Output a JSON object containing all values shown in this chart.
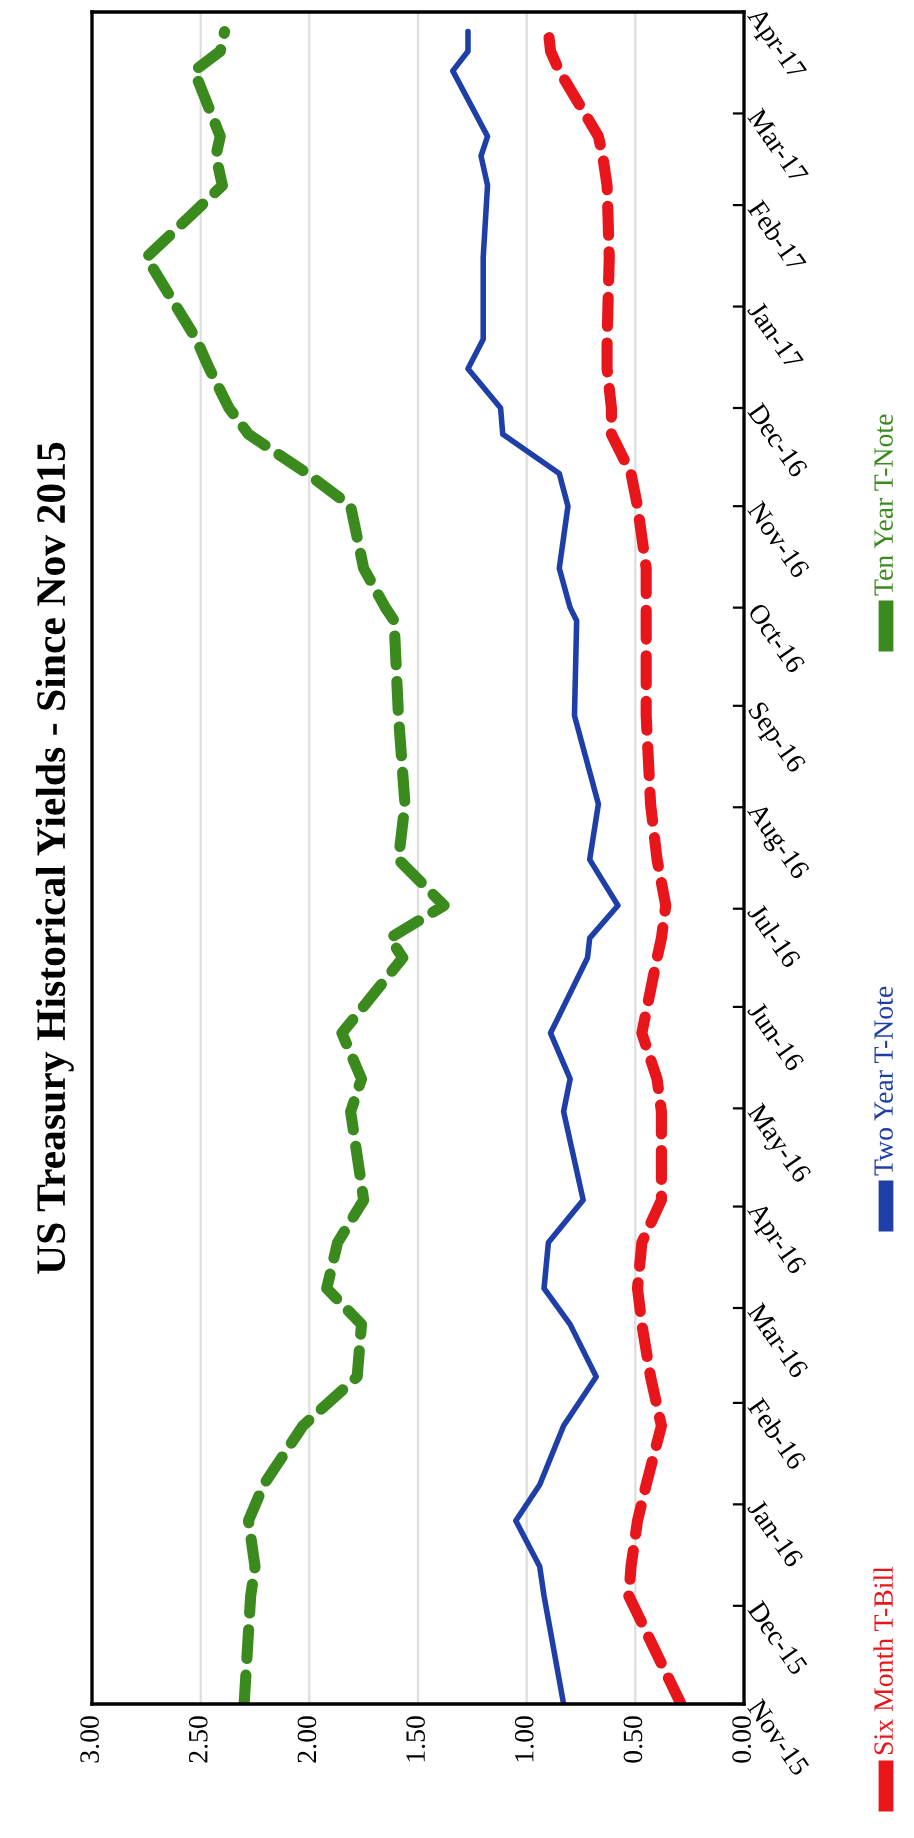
{
  "chart_data": {
    "type": "line",
    "title": "US Treasury Historical Yields - Since Nov 2015",
    "orientation": "horizontal",
    "x": [
      "2015-11-01",
      "2015-12-04",
      "2015-12-13",
      "2015-12-27",
      "2016-01-07",
      "2016-01-25",
      "2016-02-09",
      "2016-02-25",
      "2016-03-07",
      "2016-03-21",
      "2016-04-03",
      "2016-04-30",
      "2016-05-10",
      "2016-05-24",
      "2016-06-16",
      "2016-06-22",
      "2016-07-02",
      "2016-07-16",
      "2016-08-02",
      "2016-08-29",
      "2016-09-27",
      "2016-10-01",
      "2016-10-13",
      "2016-11-01",
      "2016-11-11",
      "2016-11-23",
      "2016-12-01",
      "2016-12-13",
      "2016-12-22",
      "2017-01-16",
      "2017-02-07",
      "2017-02-16",
      "2017-02-22",
      "2017-03-14",
      "2017-03-20",
      "2017-03-26"
    ],
    "series": [
      {
        "name": "Six Month T-Bill",
        "color": "#e8161b",
        "line_style": "dashed",
        "values": [
          0.29,
          0.53,
          0.52,
          0.49,
          0.45,
          0.38,
          0.43,
          0.47,
          0.49,
          0.47,
          0.38,
          0.38,
          0.4,
          0.47,
          0.4,
          0.38,
          0.36,
          0.4,
          0.43,
          0.45,
          0.45,
          0.45,
          0.45,
          0.49,
          0.52,
          0.61,
          0.61,
          0.63,
          0.63,
          0.62,
          0.63,
          0.65,
          0.67,
          0.85,
          0.89,
          0.9
        ]
      },
      {
        "name": "Two Year T-Note",
        "color": "#1f3fa8",
        "line_style": "solid",
        "values": [
          0.83,
          0.92,
          0.94,
          1.05,
          0.94,
          0.83,
          0.68,
          0.8,
          0.92,
          0.9,
          0.74,
          0.83,
          0.8,
          0.89,
          0.72,
          0.71,
          0.58,
          0.71,
          0.67,
          0.78,
          0.77,
          0.8,
          0.85,
          0.81,
          0.85,
          1.11,
          1.12,
          1.27,
          1.2,
          1.2,
          1.18,
          1.21,
          1.18,
          1.34,
          1.27,
          1.27
        ]
      },
      {
        "name": "Ten Year T-Note",
        "color": "#3a8a1e",
        "line_style": "dashed",
        "values": [
          2.3,
          2.27,
          2.25,
          2.28,
          2.21,
          2.03,
          1.78,
          1.76,
          1.92,
          1.87,
          1.75,
          1.81,
          1.76,
          1.85,
          1.57,
          1.63,
          1.38,
          1.59,
          1.56,
          1.59,
          1.61,
          1.65,
          1.75,
          1.81,
          2.01,
          2.28,
          2.37,
          2.46,
          2.52,
          2.75,
          2.4,
          2.43,
          2.41,
          2.53,
          2.41,
          2.39
        ]
      }
    ],
    "xlim": [
      3,
      0
    ],
    "xticks": [
      {
        "value": 3,
        "label": "3.00"
      },
      {
        "value": 2.5,
        "label": "2.50"
      },
      {
        "value": 2,
        "label": "2.00"
      },
      {
        "value": 1.5,
        "label": "1.50"
      },
      {
        "value": 1,
        "label": "1.00"
      },
      {
        "value": 0.5,
        "label": "0.50"
      },
      {
        "value": 0,
        "label": "0.00"
      }
    ],
    "ylim": [
      "2015-11-01",
      "2017-04-01"
    ],
    "yticks": [
      {
        "value": "2015-11-01",
        "label": "Nov-15"
      },
      {
        "value": "2015-12-01",
        "label": "Dec-15"
      },
      {
        "value": "2016-01-01",
        "label": "Jan-16"
      },
      {
        "value": "2016-02-01",
        "label": "Feb-16"
      },
      {
        "value": "2016-03-01",
        "label": "Mar-16"
      },
      {
        "value": "2016-04-01",
        "label": "Apr-16"
      },
      {
        "value": "2016-05-01",
        "label": "May-16"
      },
      {
        "value": "2016-06-01",
        "label": "Jun-16"
      },
      {
        "value": "2016-07-01",
        "label": "Jul-16"
      },
      {
        "value": "2016-08-01",
        "label": "Aug-16"
      },
      {
        "value": "2016-09-01",
        "label": "Sep-16"
      },
      {
        "value": "2016-10-01",
        "label": "Oct-16"
      },
      {
        "value": "2016-11-01",
        "label": "Nov-16"
      },
      {
        "value": "2016-12-01",
        "label": "Dec-16"
      },
      {
        "value": "2017-01-01",
        "label": "Jan-17"
      },
      {
        "value": "2017-02-01",
        "label": "Feb-17"
      },
      {
        "value": "2017-03-01",
        "label": "Mar-17"
      },
      {
        "value": "2017-04-01",
        "label": "Apr-17"
      }
    ],
    "grid": "x",
    "legend": "right"
  }
}
